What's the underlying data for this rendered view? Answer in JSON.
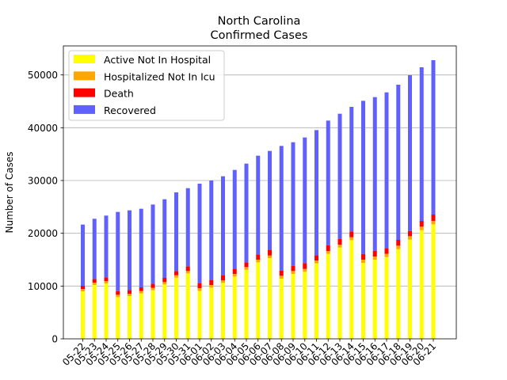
{
  "chart_data": {
    "type": "bar",
    "stacked": true,
    "title": "North Carolina",
    "subtitle": "Confirmed Cases",
    "xlabel": "",
    "ylabel": "Number of Cases",
    "ylim": [
      0,
      55500
    ],
    "yticks": [
      0,
      10000,
      20000,
      30000,
      40000,
      50000
    ],
    "grid": "horizontal",
    "legend_position": "top-left",
    "categories": [
      "05-22",
      "05-23",
      "05-24",
      "05-25",
      "05-26",
      "05-27",
      "05-28",
      "05-29",
      "05-30",
      "05-31",
      "06-01",
      "06-02",
      "06-03",
      "06-04",
      "06-05",
      "06-06",
      "06-07",
      "06-08",
      "06-09",
      "06-10",
      "06-11",
      "06-12",
      "06-13",
      "06-14",
      "06-15",
      "06-16",
      "06-17",
      "06-18",
      "06-19",
      "06-20",
      "06-21"
    ],
    "series": [
      {
        "name": "Active Not In Hospital",
        "color": "#ffff00",
        "values": [
          9000,
          10200,
          10500,
          7900,
          8100,
          8600,
          9200,
          10300,
          11600,
          12400,
          9100,
          9700,
          10600,
          11800,
          13100,
          14500,
          15300,
          11400,
          12300,
          12700,
          14300,
          16100,
          17300,
          18700,
          14400,
          15000,
          15500,
          17000,
          18800,
          20600,
          21700
        ]
      },
      {
        "name": "Hospitalized Not In Icu",
        "color": "#ffa500",
        "values": [
          450,
          450,
          450,
          450,
          450,
          450,
          450,
          450,
          450,
          450,
          500,
          500,
          500,
          500,
          500,
          500,
          500,
          550,
          550,
          550,
          550,
          550,
          550,
          550,
          600,
          600,
          600,
          650,
          650,
          650,
          650
        ]
      },
      {
        "name": "Death",
        "color": "#ff0000",
        "values": [
          600,
          700,
          700,
          700,
          700,
          700,
          800,
          800,
          800,
          900,
          900,
          900,
          900,
          900,
          900,
          1000,
          1000,
          1000,
          1000,
          1100,
          1000,
          1100,
          1100,
          1100,
          1100,
          1100,
          1100,
          1100,
          1000,
          1100,
          1200
        ]
      },
      {
        "name": "Recovered",
        "color": "#6060ff",
        "values": [
          11600,
          11400,
          11700,
          15000,
          15100,
          14900,
          15000,
          14900,
          14900,
          14800,
          18900,
          18900,
          18800,
          18800,
          18700,
          18700,
          18800,
          23600,
          23400,
          23800,
          23700,
          23600,
          23700,
          23600,
          29000,
          29100,
          29500,
          29400,
          29500,
          29100,
          29250
        ]
      }
    ]
  }
}
